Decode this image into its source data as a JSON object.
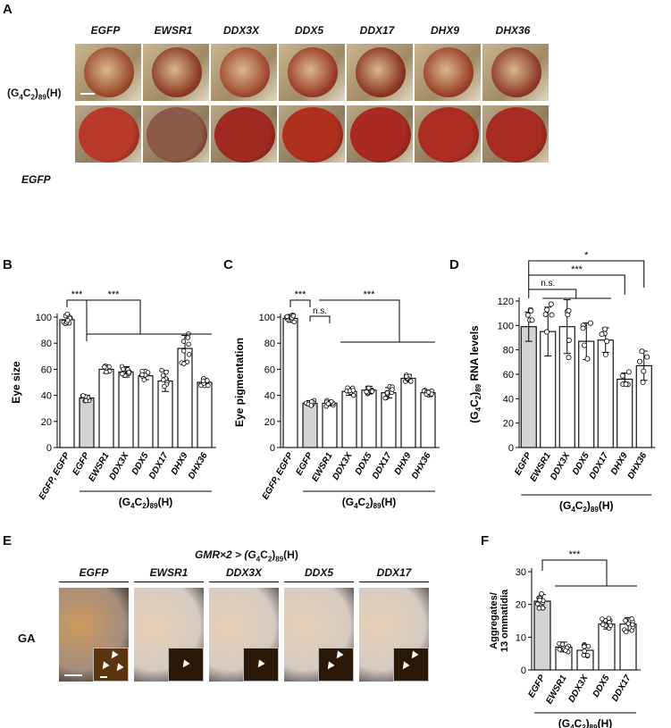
{
  "panels": {
    "a": "A",
    "b": "B",
    "c": "C",
    "d": "D",
    "e": "E",
    "f": "F"
  },
  "panel_a": {
    "columns": [
      "EGFP",
      "EWSR1",
      "DDX3X",
      "DDX5",
      "DDX17",
      "DHX9",
      "DHX36"
    ],
    "row_top_prefix": "(G",
    "row_top_sub1": "4",
    "row_top_mid": "C",
    "row_top_sub2": "2",
    "row_top_close": ")",
    "row_top_sub3": "89",
    "row_top_suffix": "(H)",
    "row_bottom": "EGFP"
  },
  "panel_e": {
    "header_prefix": "GMR×2 > (G",
    "header_sub1": "4",
    "header_mid": "C",
    "header_sub2": "2",
    "header_close": ")",
    "header_sub3": "89",
    "header_suffix": "(H)",
    "columns": [
      "EGFP",
      "EWSR1",
      "DDX3X",
      "DDX5",
      "DDX17"
    ],
    "row_label": "GA",
    "arrows_per_inset": [
      3,
      1,
      1,
      2,
      2
    ]
  },
  "colors": {
    "bar_control": "#d3d3d3",
    "bar_other": "#ffffff",
    "stroke": "#000000"
  },
  "chart_data": [
    {
      "id": "B",
      "type": "bar",
      "title": "",
      "ylabel": "Eye size",
      "xlabel": "(G4C2)89(H)",
      "categories": [
        "EGFP, EGFP",
        "EGFP",
        "EWSR1",
        "DDX3X",
        "DDX5",
        "DDX17",
        "DHX9",
        "DHX36"
      ],
      "values": [
        98,
        38,
        60,
        58,
        55,
        51,
        76,
        50
      ],
      "errors": [
        4,
        2,
        3,
        4,
        3,
        8,
        10,
        3
      ],
      "ylim": [
        0,
        100
      ],
      "yticks": [
        0,
        20,
        40,
        60,
        80,
        100
      ],
      "control_index": 1,
      "bracket_start": 1,
      "bracket_end": 7,
      "significance": [
        {
          "from": 0,
          "to": 1,
          "label": "***"
        },
        {
          "from": 1,
          "to": "group",
          "label": "***"
        }
      ]
    },
    {
      "id": "C",
      "type": "bar",
      "title": "",
      "ylabel": "Eye pigmentation",
      "xlabel": "(G4C2)89(H)",
      "categories": [
        "EGFP, EGFP",
        "EGFP",
        "EWSR1",
        "DDX3X",
        "DDX5",
        "DDX17",
        "DHX9",
        "DHX36"
      ],
      "values": [
        99,
        34,
        34,
        43,
        44,
        42,
        53,
        42
      ],
      "errors": [
        3,
        2,
        2,
        3,
        3,
        4,
        3,
        2
      ],
      "ylim": [
        0,
        100
      ],
      "yticks": [
        0,
        20,
        40,
        60,
        80,
        100
      ],
      "control_index": 1,
      "bracket_start": 3,
      "bracket_end": 7,
      "significance": [
        {
          "from": 0,
          "to": 1,
          "label": "***"
        },
        {
          "from": 1,
          "to": 2,
          "label": "n.s."
        },
        {
          "from": 1,
          "to": "group",
          "label": "***"
        }
      ]
    },
    {
      "id": "D",
      "type": "bar",
      "title": "",
      "ylabel": "(G4C2)89 RNA levels",
      "xlabel": "(G4C2)89(H)",
      "categories": [
        "EGFP",
        "EWSR1",
        "DDX3X",
        "DDX5",
        "DDX17",
        "DHX9",
        "DHX36"
      ],
      "values": [
        99,
        95,
        99,
        87,
        88,
        56,
        67
      ],
      "errors": [
        12,
        20,
        22,
        15,
        10,
        5,
        12
      ],
      "ylim": [
        0,
        120
      ],
      "yticks": [
        0,
        20,
        40,
        60,
        80,
        100,
        120
      ],
      "control_index": 0,
      "significance": [
        {
          "from": 0,
          "to": "1-4",
          "label": "n.s."
        },
        {
          "from": 0,
          "to": 5,
          "label": "***"
        },
        {
          "from": 0,
          "to": 6,
          "label": "*"
        }
      ]
    },
    {
      "id": "F",
      "type": "bar",
      "title": "",
      "ylabel": "Aggregates/ 13 ommatidia",
      "xlabel": "(G4C2)89(H)",
      "categories": [
        "EGFP",
        "EWSR1",
        "DDX3X",
        "DDX5",
        "DDX17"
      ],
      "values": [
        21,
        7,
        6,
        14,
        14
      ],
      "errors": [
        2,
        1.5,
        1.5,
        1.5,
        2
      ],
      "ylim": [
        0,
        30
      ],
      "yticks": [
        0,
        10,
        20,
        30
      ],
      "control_index": 0,
      "significance": [
        {
          "from": 0,
          "to": "group",
          "label": "***"
        }
      ]
    }
  ]
}
